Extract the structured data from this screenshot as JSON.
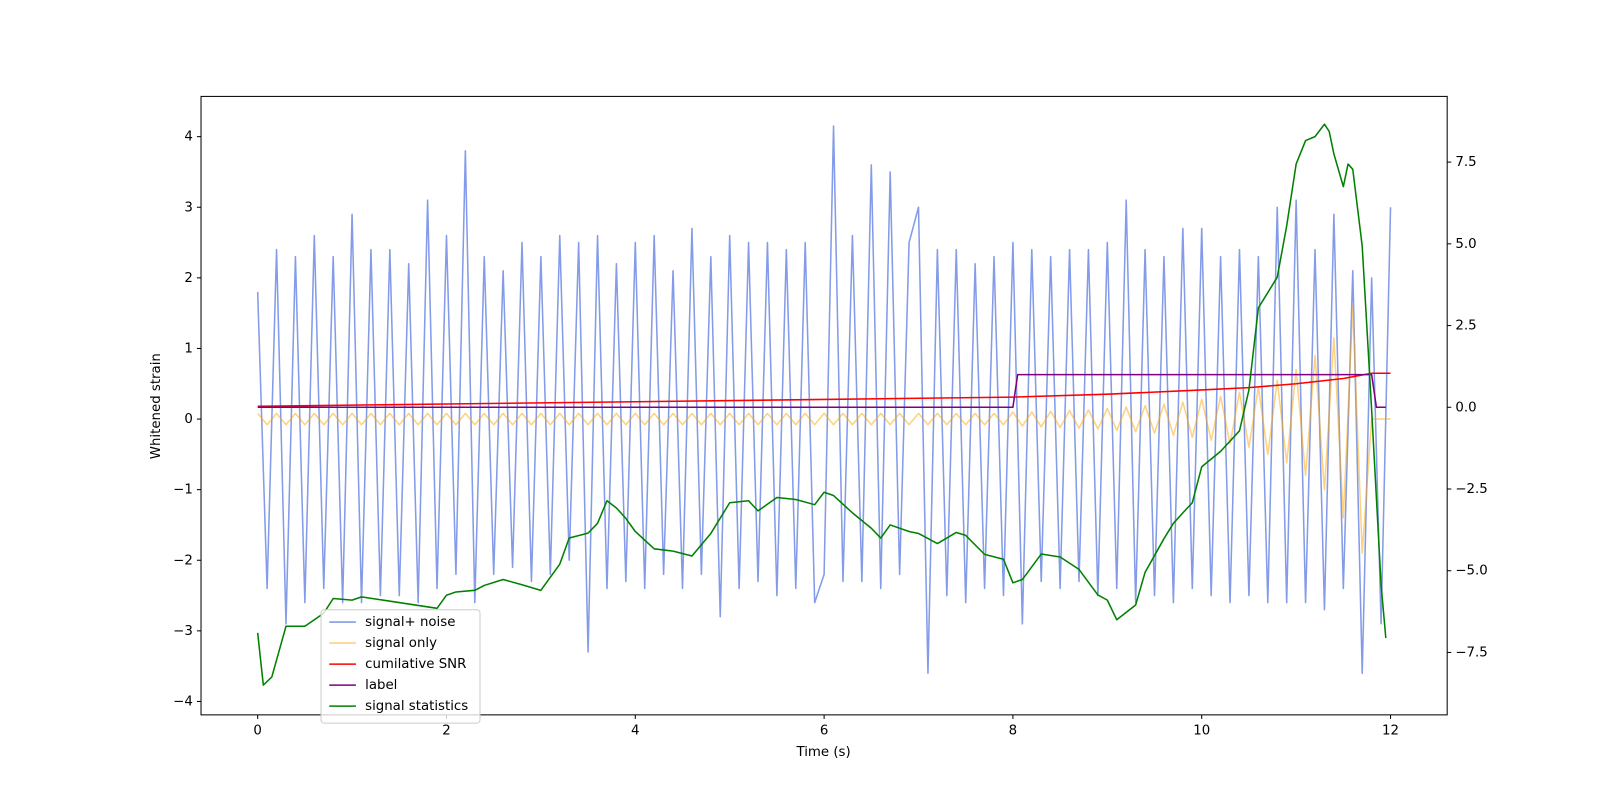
{
  "chart_data": {
    "type": "line",
    "xlabel": "Time (s)",
    "ylabel": "Whitened strain",
    "xlim": [
      -0.6,
      12.6
    ],
    "ylim": [
      -4.19,
      4.57
    ],
    "y2lim": [
      -9.41,
      9.51
    ],
    "xticks": [
      0,
      2,
      4,
      6,
      8,
      10,
      12
    ],
    "yticks": [
      {
        "value": -4,
        "label": "−4"
      },
      {
        "value": -3,
        "label": "−3"
      },
      {
        "value": -2,
        "label": "−2"
      },
      {
        "value": -1,
        "label": "−1"
      },
      0,
      1,
      2,
      3,
      4
    ],
    "y2ticks": [
      {
        "value": -7.5,
        "label": "−7.5"
      },
      {
        "value": -5,
        "label": "−5.0"
      },
      {
        "value": -2.5,
        "label": "−2.5"
      },
      {
        "value": 0,
        "label": "0.0"
      },
      2.5,
      {
        "value": 5,
        "label": "5.0"
      },
      7.5
    ],
    "legend": "lower left",
    "x": [
      0,
      0.1,
      0.2,
      0.3,
      0.4,
      0.5,
      0.6,
      0.7,
      0.8,
      0.9,
      1,
      1.1,
      1.2,
      1.3,
      1.4,
      1.5,
      1.6,
      1.7,
      1.8,
      1.9,
      2,
      2.1,
      2.2,
      2.3,
      2.4,
      2.5,
      2.6,
      2.7,
      2.8,
      2.9,
      3,
      3.1,
      3.2,
      3.3,
      3.4,
      3.5,
      3.6,
      3.7,
      3.8,
      3.9,
      4,
      4.1,
      4.2,
      4.3,
      4.4,
      4.5,
      4.6,
      4.7,
      4.8,
      4.9,
      5,
      5.1,
      5.2,
      5.3,
      5.4,
      5.5,
      5.6,
      5.7,
      5.8,
      5.9,
      6,
      6.1,
      6.2,
      6.3,
      6.4,
      6.5,
      6.6,
      6.7,
      6.8,
      6.9,
      7,
      7.1,
      7.2,
      7.3,
      7.4,
      7.5,
      7.6,
      7.7,
      7.8,
      7.9,
      8,
      8.1,
      8.2,
      8.3,
      8.4,
      8.5,
      8.6,
      8.7,
      8.8,
      8.9,
      9,
      9.1,
      9.2,
      9.3,
      9.4,
      9.5,
      9.6,
      9.7,
      9.8,
      9.9,
      10,
      10.1,
      10.2,
      10.3,
      10.4,
      10.5,
      10.6,
      10.7,
      10.8,
      10.9,
      11,
      11.1,
      11.2,
      11.3,
      11.4,
      11.5,
      11.6,
      11.7,
      11.8,
      11.9,
      12
    ],
    "series": [
      {
        "name": "signal+ noise",
        "color": "#7590e6",
        "values": [
          1.8,
          -2.4,
          2.4,
          -2.9,
          2.3,
          -2.6,
          2.6,
          -2.4,
          2.3,
          -2.6,
          2.9,
          -2.6,
          2.4,
          -2.5,
          2.4,
          -2.5,
          2.2,
          -2.6,
          3.1,
          -2.4,
          2.6,
          -2.2,
          3.8,
          -2.6,
          2.3,
          -2.2,
          2.1,
          -2.1,
          2.5,
          -2.3,
          2.3,
          -2.2,
          2.6,
          -2.0,
          2.5,
          -3.3,
          2.6,
          -2.4,
          2.2,
          -2.3,
          2.5,
          -2.4,
          2.6,
          -2.2,
          2.1,
          -2.4,
          2.7,
          -2.2,
          2.3,
          -2.8,
          2.6,
          -2.4,
          2.5,
          -2.3,
          2.5,
          -2.5,
          2.4,
          -2.4,
          2.5,
          -2.6,
          -2.2,
          4.15,
          -2.3,
          2.6,
          -2.3,
          3.6,
          -2.4,
          3.5,
          -2.2,
          2.5,
          3.0,
          -3.6,
          2.4,
          -2.5,
          2.4,
          -2.6,
          2.2,
          -2.4,
          2.3,
          -2.5,
          2.5,
          -2.9,
          2.4,
          -2.3,
          2.3,
          -2.4,
          2.4,
          -2.3,
          2.4,
          -2.5,
          2.5,
          -2.4,
          3.1,
          -2.6,
          2.4,
          -2.5,
          2.3,
          -2.6,
          2.7,
          -2.4,
          2.7,
          -2.5,
          2.3,
          -2.6,
          2.4,
          -2.5,
          2.3,
          -2.6,
          3.0,
          -2.6,
          3.1,
          -2.6,
          2.4,
          -2.7,
          2.9,
          -2.4,
          2.1,
          -3.6,
          2.0,
          -2.9,
          3.0
        ]
      },
      {
        "name": "signal only",
        "color": "#ffa500",
        "values": [
          0.08,
          -0.08,
          0.08,
          -0.08,
          0.08,
          -0.08,
          0.08,
          -0.08,
          0.08,
          -0.08,
          0.08,
          -0.08,
          0.08,
          -0.08,
          0.08,
          -0.08,
          0.08,
          -0.08,
          0.08,
          -0.08,
          0.08,
          -0.08,
          0.08,
          -0.08,
          0.08,
          -0.08,
          0.08,
          -0.08,
          0.08,
          -0.08,
          0.08,
          -0.08,
          0.08,
          -0.08,
          0.08,
          -0.08,
          0.08,
          -0.08,
          0.08,
          -0.08,
          0.08,
          -0.08,
          0.08,
          -0.08,
          0.08,
          -0.08,
          0.08,
          -0.08,
          0.08,
          -0.08,
          0.08,
          -0.08,
          0.08,
          -0.08,
          0.08,
          -0.08,
          0.08,
          -0.08,
          0.08,
          -0.08,
          0.08,
          -0.08,
          0.08,
          -0.08,
          0.08,
          -0.08,
          0.08,
          -0.08,
          0.08,
          -0.08,
          0.08,
          -0.08,
          0.08,
          -0.08,
          0.08,
          -0.08,
          0.08,
          -0.08,
          0.08,
          -0.08,
          0.1,
          -0.1,
          0.1,
          -0.11,
          0.11,
          -0.12,
          0.12,
          -0.13,
          0.13,
          -0.14,
          0.15,
          -0.16,
          0.17,
          -0.18,
          0.19,
          -0.2,
          0.21,
          -0.23,
          0.24,
          -0.26,
          0.28,
          -0.3,
          0.32,
          -0.35,
          0.38,
          -0.4,
          0.45,
          -0.5,
          0.55,
          -0.62,
          0.7,
          -0.8,
          0.9,
          -1.0,
          1.15,
          -1.4,
          1.6,
          -1.9,
          0,
          0,
          0
        ]
      },
      {
        "name": "cumilative SNR",
        "color": "#ff0000",
        "axis": "y2",
        "x": [
          0,
          2,
          4,
          6,
          8,
          9,
          10,
          10.5,
          11,
          11.5,
          11.8,
          12
        ],
        "values": [
          0.03,
          0.1,
          0.17,
          0.24,
          0.31,
          0.4,
          0.53,
          0.6,
          0.72,
          0.88,
          1.04,
          1.04
        ]
      },
      {
        "name": "label",
        "color": "#800080",
        "axis": "y2",
        "x": [
          0,
          8.0,
          8.05,
          11.8,
          11.85,
          11.95
        ],
        "values": [
          0,
          0,
          1,
          1,
          0,
          0
        ]
      },
      {
        "name": "signal statistics",
        "color": "#008000",
        "axis": "y2",
        "x": [
          0,
          0.06,
          0.15,
          0.3,
          0.5,
          0.7,
          0.8,
          1.0,
          1.1,
          1.9,
          2.0,
          2.1,
          2.3,
          2.4,
          2.6,
          2.8,
          3.0,
          3.2,
          3.3,
          3.5,
          3.6,
          3.7,
          3.8,
          3.9,
          4.0,
          4.2,
          4.4,
          4.6,
          4.8,
          5.0,
          5.2,
          5.3,
          5.5,
          5.7,
          5.9,
          6.0,
          6.1,
          6.3,
          6.5,
          6.6,
          6.7,
          6.9,
          7.0,
          7.2,
          7.4,
          7.5,
          7.7,
          7.9,
          8.0,
          8.1,
          8.3,
          8.5,
          8.7,
          8.9,
          9.0,
          9.1,
          9.3,
          9.4,
          9.6,
          9.7,
          9.8,
          9.9,
          10.0,
          10.2,
          10.4,
          10.5,
          10.6,
          10.7,
          10.8,
          10.9,
          11.0,
          11.1,
          11.2,
          11.3,
          11.35,
          11.4,
          11.5,
          11.55,
          11.6,
          11.7,
          11.8,
          11.9,
          11.95
        ],
        "values": [
          -6.9,
          -8.5,
          -8.25,
          -6.7,
          -6.7,
          -6.3,
          -5.85,
          -5.9,
          -5.8,
          -6.15,
          -5.75,
          -5.65,
          -5.6,
          -5.45,
          -5.27,
          -5.43,
          -5.6,
          -4.8,
          -4.0,
          -3.85,
          -3.55,
          -2.86,
          -3.08,
          -3.4,
          -3.8,
          -4.33,
          -4.4,
          -4.55,
          -3.86,
          -2.92,
          -2.86,
          -3.17,
          -2.76,
          -2.82,
          -2.98,
          -2.6,
          -2.7,
          -3.23,
          -3.7,
          -4.0,
          -3.6,
          -3.8,
          -3.86,
          -4.17,
          -3.83,
          -3.92,
          -4.5,
          -4.65,
          -5.37,
          -5.27,
          -4.49,
          -4.58,
          -4.96,
          -5.74,
          -5.9,
          -6.5,
          -6.05,
          -5.05,
          -4.02,
          -3.55,
          -3.23,
          -2.92,
          -1.82,
          -1.35,
          -0.72,
          0.53,
          3.04,
          3.51,
          3.98,
          5.55,
          7.44,
          8.16,
          8.28,
          8.66,
          8.44,
          7.75,
          6.75,
          7.44,
          7.28,
          4.93,
          -0.09,
          -5.43,
          -7.06
        ]
      }
    ]
  }
}
